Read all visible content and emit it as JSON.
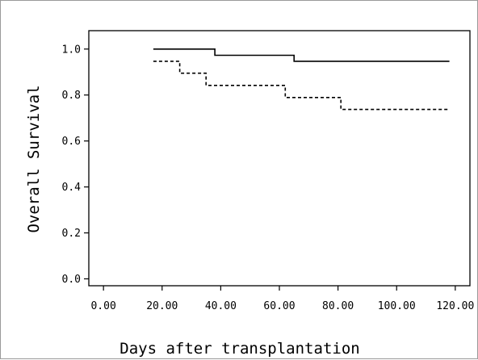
{
  "chart_data": {
    "type": "line",
    "title": "",
    "xlabel": "Days after transplantation",
    "ylabel": "Overall Survival",
    "xlim": [
      -5,
      125
    ],
    "ylim": [
      -0.03,
      1.08
    ],
    "xticks": [
      0,
      20,
      40,
      60,
      80,
      100,
      120
    ],
    "xtick_labels": [
      "0.00",
      "20.00",
      "40.00",
      "60.00",
      "80.00",
      "100.00",
      "120.00"
    ],
    "yticks": [
      0,
      0.2,
      0.4,
      0.6,
      0.8,
      1.0
    ],
    "ytick_labels": [
      "0.0",
      "0.2",
      "0.4",
      "0.6",
      "0.8",
      "1.0"
    ],
    "grid": false,
    "legend": false,
    "series": [
      {
        "style": "solid",
        "color": "#000000",
        "step": true,
        "x": [
          17,
          38,
          65,
          118
        ],
        "y": [
          1.0,
          0.973,
          0.947,
          0.947
        ]
      },
      {
        "style": "dashed",
        "color": "#000000",
        "step": true,
        "x": [
          17,
          26,
          35,
          62,
          81,
          118
        ],
        "y": [
          0.947,
          0.895,
          0.842,
          0.789,
          0.737,
          0.737
        ]
      }
    ]
  }
}
